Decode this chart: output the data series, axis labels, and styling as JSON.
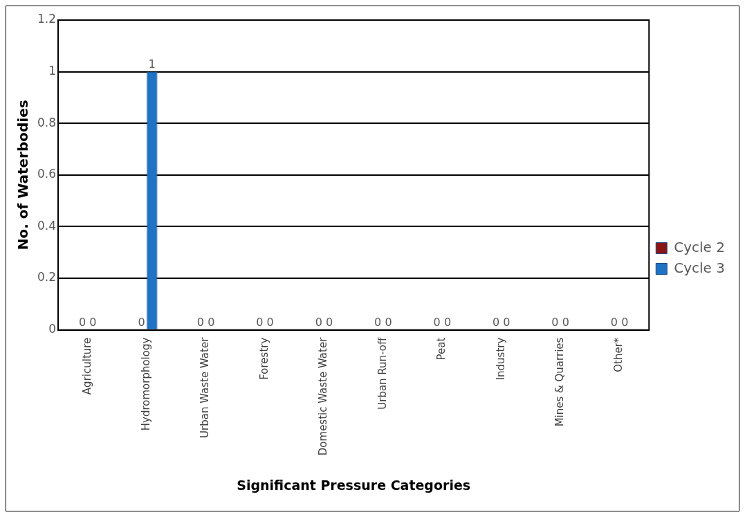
{
  "chart_data": {
    "type": "bar",
    "xlabel": "Significant Pressure Categories",
    "ylabel": "No. of Waterbodies",
    "categories": [
      "Agriculture",
      "Hydromorphology",
      "Urban Waste Water",
      "Forestry",
      "Domestic Waste Water",
      "Urban Run-off",
      "Peat",
      "Industry",
      "Mines & Quarries",
      "Other*"
    ],
    "series": [
      {
        "name": "Cycle 2",
        "color": "#8b1414",
        "values": [
          0,
          0,
          0,
          0,
          0,
          0,
          0,
          0,
          0,
          0
        ]
      },
      {
        "name": "Cycle 3",
        "color": "#1f72c4",
        "values": [
          0,
          1,
          0,
          0,
          0,
          0,
          0,
          0,
          0,
          0
        ]
      }
    ],
    "ylim": [
      0,
      1.2
    ],
    "yticks": [
      0,
      0.2,
      0.4,
      0.6,
      0.8,
      1,
      1.2
    ],
    "grid": "y",
    "legend": "right",
    "data_labels": true
  }
}
